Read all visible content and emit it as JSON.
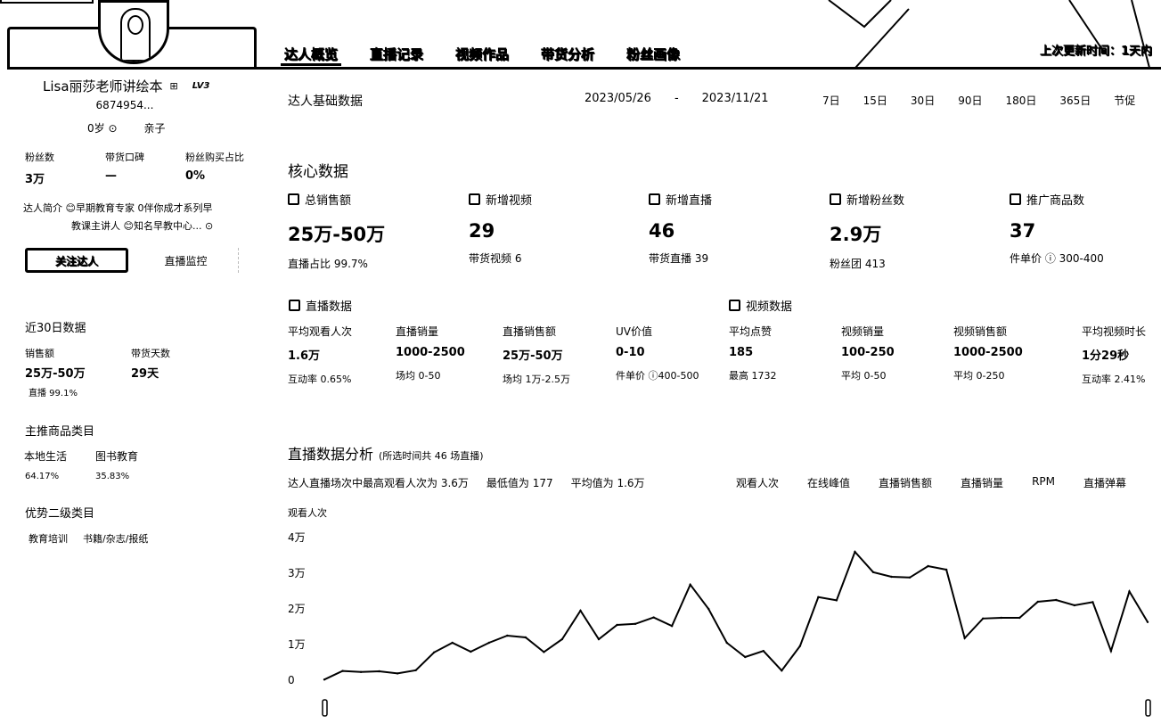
{
  "header": {
    "tabs": [
      "达人概览",
      "直播记录",
      "视频作品",
      "带货分析",
      "粉丝画像"
    ],
    "update_text": "上次更新时间：1天内"
  },
  "profile": {
    "name": "Lisa丽莎老师讲绘本",
    "level": "LV3",
    "id": "6874954...",
    "age": "0岁",
    "category": "亲子",
    "stats": [
      {
        "label": "粉丝数",
        "value": "3万"
      },
      {
        "label": "带货口碑",
        "value": "—"
      },
      {
        "label": "粉丝购买占比",
        "value": "0%"
      }
    ],
    "bio_label": "达人简介",
    "bio_line1": "😊早期教育专家 0伴你成才系列早",
    "bio_line2": "教课主讲人 😊知名早教中心...",
    "follow_button": "关注达人",
    "monitor_button": "直播监控"
  },
  "recent30": {
    "title": "近30日数据",
    "sales_label": "销售额",
    "sales_value": "25万-50万",
    "days_label": "带货天数",
    "days_value": "29天",
    "live_share": "直播 99.1%"
  },
  "main_categories": {
    "title": "主推商品类目",
    "items": [
      {
        "name": "本地生活",
        "pct": "64.17%"
      },
      {
        "name": "图书教育",
        "pct": "35.83%"
      }
    ]
  },
  "secondary": {
    "title": "优势二级类目",
    "items": [
      "教育培训",
      "书籍/杂志/报纸"
    ]
  },
  "basic": {
    "title": "达人基础数据",
    "date_start": "2023/05/26",
    "date_sep": "-",
    "date_end": "2023/11/21",
    "ranges": [
      "7日",
      "15日",
      "30日",
      "90日",
      "180日",
      "365日",
      "节促"
    ]
  },
  "core": {
    "title": "核心数据",
    "items": [
      {
        "label": "总销售额",
        "value": "25万-50万",
        "sub": "直播占比 99.7%"
      },
      {
        "label": "新增视频",
        "value": "29",
        "sub": "带货视频 6"
      },
      {
        "label": "新增直播",
        "value": "46",
        "sub": "带货直播 39"
      },
      {
        "label": "新增粉丝数",
        "value": "2.9万",
        "sub": "粉丝团 413"
      },
      {
        "label": "推广商品数",
        "value": "37",
        "sub": "件单价 ⓘ 300-400"
      }
    ]
  },
  "live_data": {
    "title": "直播数据",
    "metrics": [
      {
        "label": "平均观看人次",
        "value": "1.6万",
        "sub": "互动率 0.65%"
      },
      {
        "label": "直播销量",
        "value": "1000-2500",
        "sub": "场均 0-50"
      },
      {
        "label": "直播销售额",
        "value": "25万-50万",
        "sub": "场均 1万-2.5万"
      },
      {
        "label": "UV价值",
        "value": "0-10",
        "sub": "件单价 ⓘ400-500"
      }
    ]
  },
  "video_data": {
    "title": "视频数据",
    "metrics": [
      {
        "label": "平均点赞",
        "value": "185",
        "sub": "最高 1732"
      },
      {
        "label": "视频销量",
        "value": "100-250",
        "sub": "平均 0-50"
      },
      {
        "label": "视频销售额",
        "value": "1000-2500",
        "sub": "平均 0-250"
      },
      {
        "label": "平均视频时长",
        "value": "1分29秒",
        "sub": "互动率 2.41%"
      }
    ]
  },
  "live_analysis": {
    "title": "直播数据分析",
    "note": "(所选时间共 46 场直播)",
    "stat1": "达人直播场次中最高观看人次为 3.6万",
    "stat2": "最低值为 177",
    "stat3": "平均值为 1.6万",
    "tabs": [
      "观看人次",
      "在线峰值",
      "直播销售额",
      "直播销量",
      "RPM",
      "直播弹幕"
    ],
    "ylabel": "观看人次"
  },
  "chart_data": {
    "type": "line",
    "ylabel": "观看人次",
    "ylim": [
      0,
      40000
    ],
    "yticks": [
      "0",
      "1万",
      "2万",
      "3万",
      "4万"
    ],
    "series": [
      {
        "values": [
          177,
          2600,
          2300,
          2500,
          1900,
          2800,
          7800,
          10500,
          8000,
          10500,
          12500,
          12000,
          7900,
          11500,
          19500,
          11500,
          15500,
          15800,
          17600,
          15200,
          26800,
          20000,
          10500,
          6500,
          8200,
          2700,
          9600,
          23300,
          22400,
          36000,
          30300,
          29000,
          28800,
          32000,
          31000,
          11800,
          17300,
          17500,
          17500,
          22000,
          22500,
          21000,
          21900,
          8200,
          24900,
          16300
        ]
      }
    ]
  }
}
